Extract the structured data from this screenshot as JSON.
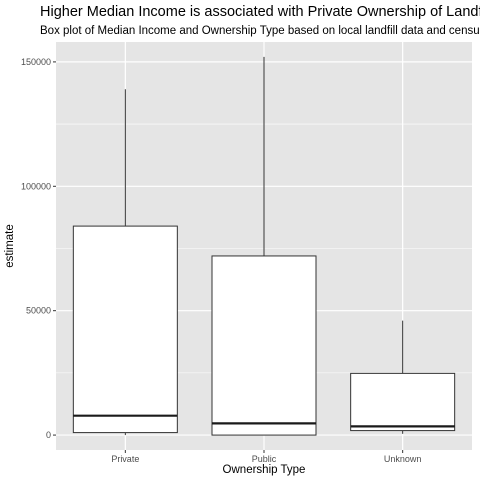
{
  "chart_data": {
    "type": "box",
    "title": "Higher Median Income is associated with Private Ownership of Landfills",
    "subtitle": "Box plot of Median Income and Ownership Type based on local landfill data and census",
    "xlabel": "Ownership Type",
    "ylabel": "estimate",
    "categories": [
      "Private",
      "Public",
      "Unknown"
    ],
    "boxes": [
      {
        "category": "Private",
        "min": 0,
        "q1": 1000,
        "median": 7800,
        "q3": 84000,
        "max": 139000
      },
      {
        "category": "Public",
        "min": 0,
        "q1": 0,
        "median": 4700,
        "q3": 72000,
        "max": 152000
      },
      {
        "category": "Unknown",
        "min": 500,
        "q1": 1800,
        "median": 3500,
        "q3": 24800,
        "max": 46000
      }
    ],
    "ylim": [
      -6000,
      158000
    ],
    "yticks": [
      0,
      50000,
      100000,
      150000
    ],
    "ytick_labels": [
      "0",
      "50000",
      "100000",
      "150000"
    ],
    "grid": true,
    "colors": {
      "panel": "#e5e5e5",
      "grid": "#ffffff",
      "box_fill": "#ffffff",
      "box_stroke": "#333333",
      "text": "#4d4d4d"
    }
  }
}
